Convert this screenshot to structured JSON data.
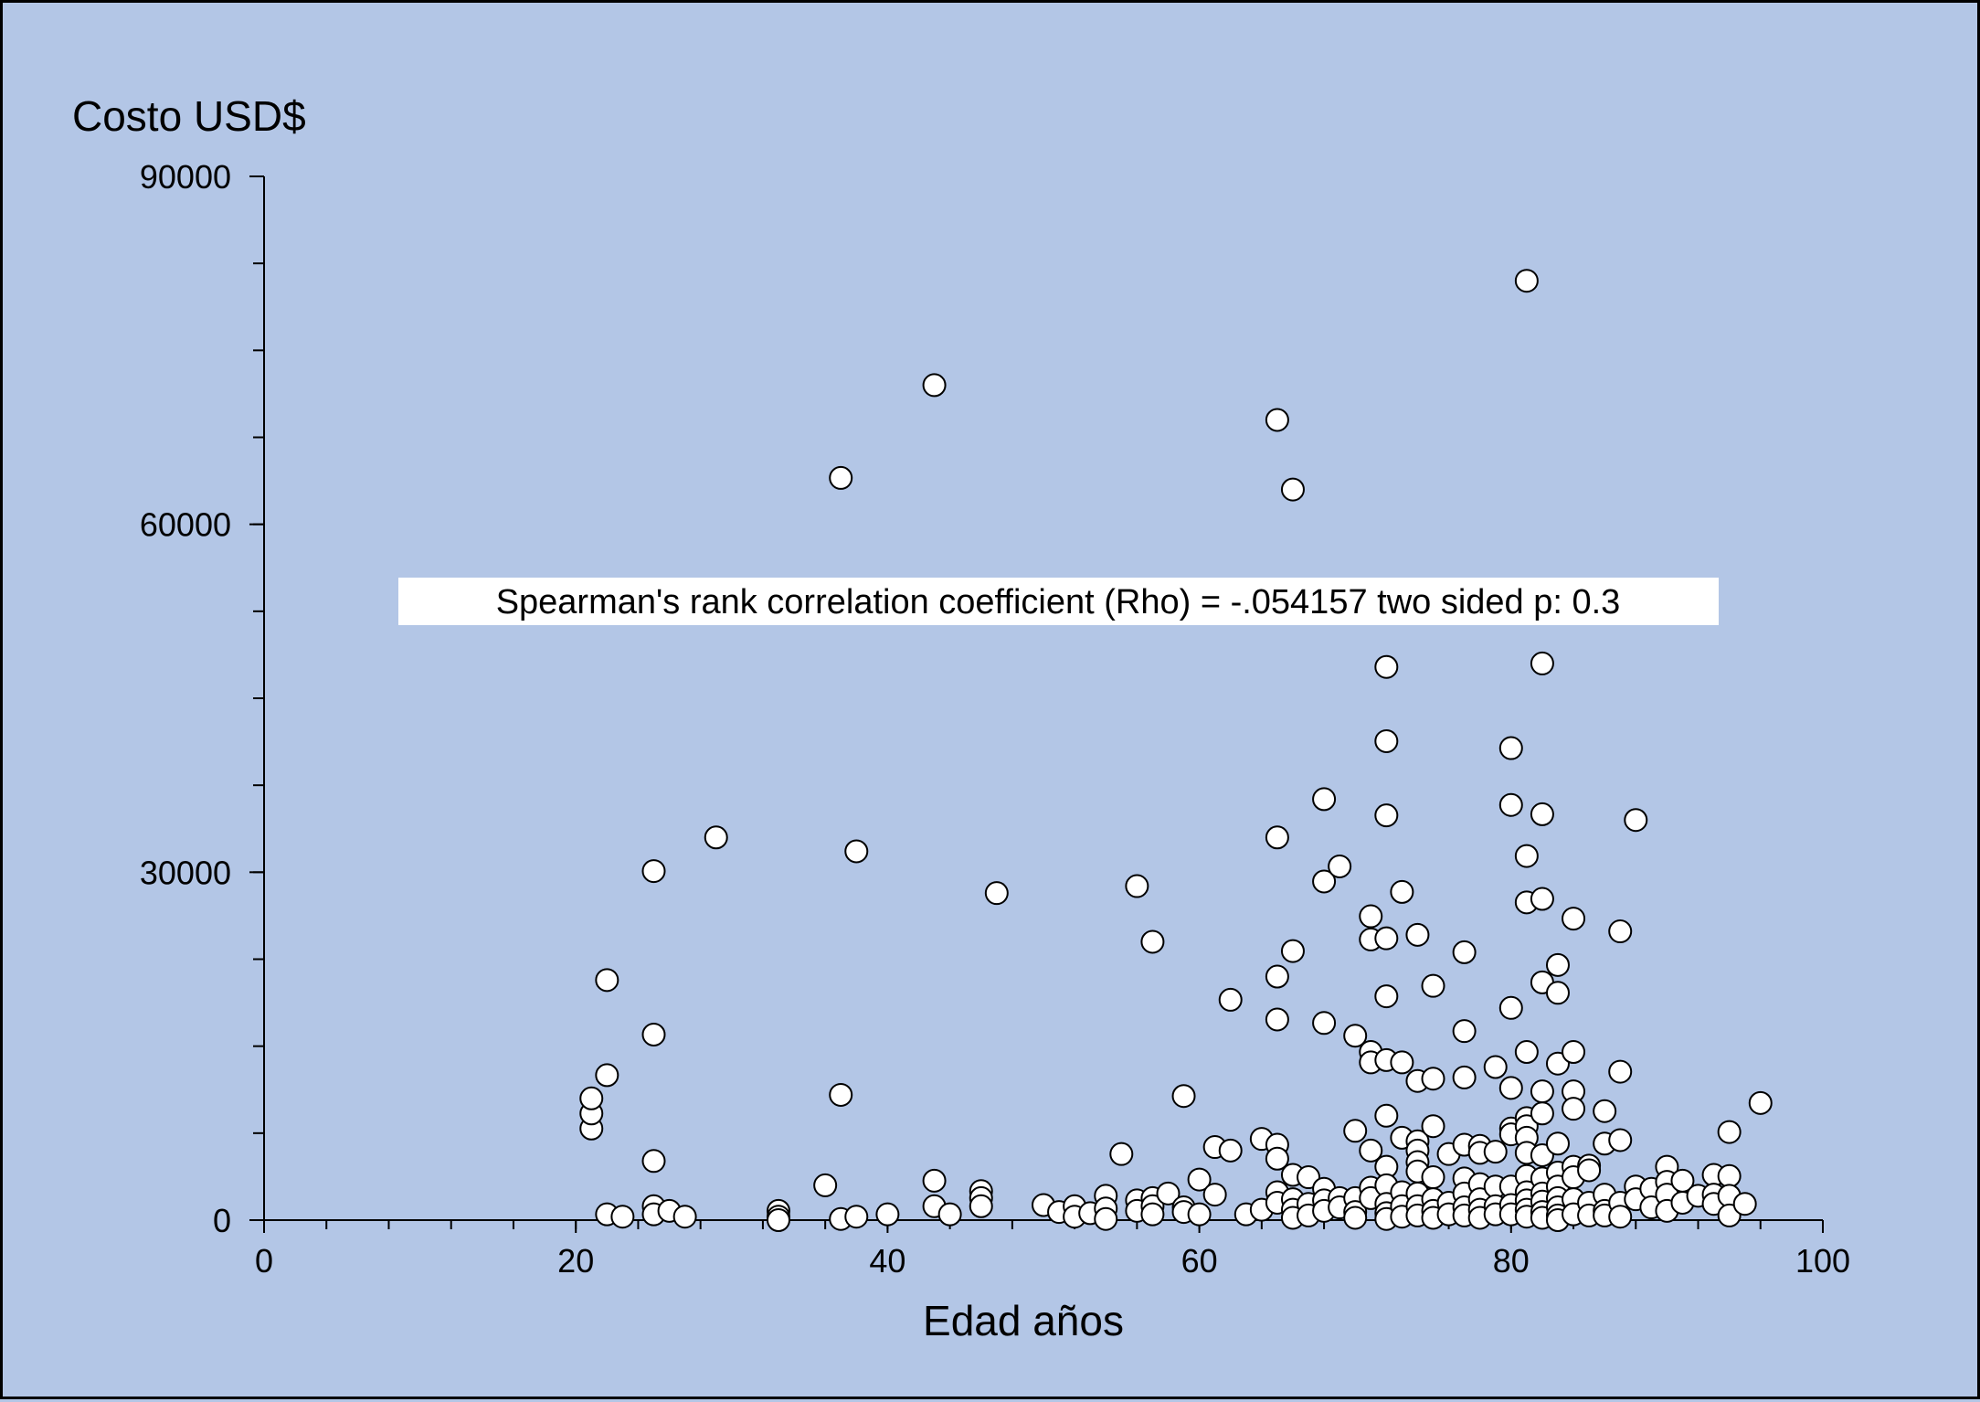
{
  "colors": {
    "background": "#b3c6e6",
    "axis": "#000000",
    "point_fill": "#ffffff",
    "point_stroke": "#000000",
    "annotation_bg": "#ffffff"
  },
  "chart_data": {
    "type": "scatter",
    "title": "",
    "xlabel": "Edad años",
    "ylabel": "Costo USD$",
    "xlim": [
      0,
      100
    ],
    "ylim": [
      0,
      90000
    ],
    "x_ticks": [
      0,
      20,
      40,
      60,
      80,
      100
    ],
    "y_ticks": [
      0,
      30000,
      60000,
      90000
    ],
    "x_tick_labels": [
      "0",
      "20",
      "40",
      "60",
      "80",
      "100"
    ],
    "y_tick_labels": [
      "0",
      "30000",
      "60000",
      "90000"
    ],
    "annotation": "Spearman's rank correlation coefficient (Rho) =  -.054157 two sided p: 0.3",
    "grid": false,
    "legend": "none",
    "series": [
      {
        "points": [
          [
            21,
            7900
          ],
          [
            21,
            9200
          ],
          [
            21,
            10500
          ],
          [
            22,
            12500
          ],
          [
            22,
            20700
          ],
          [
            22,
            500
          ],
          [
            23,
            300
          ],
          [
            25,
            30100
          ],
          [
            25,
            16000
          ],
          [
            25,
            5100
          ],
          [
            25,
            1200
          ],
          [
            25,
            500
          ],
          [
            26,
            800
          ],
          [
            27,
            300
          ],
          [
            29,
            33000
          ],
          [
            33,
            800
          ],
          [
            33,
            300
          ],
          [
            33,
            0
          ],
          [
            36,
            3000
          ],
          [
            37,
            64000
          ],
          [
            37,
            10800
          ],
          [
            37,
            100
          ],
          [
            38,
            31800
          ],
          [
            38,
            300
          ],
          [
            40,
            500
          ],
          [
            43,
            72000
          ],
          [
            43,
            3400
          ],
          [
            43,
            1200
          ],
          [
            44,
            500
          ],
          [
            46,
            2500
          ],
          [
            46,
            1900
          ],
          [
            46,
            1200
          ],
          [
            47,
            28200
          ],
          [
            50,
            1300
          ],
          [
            51,
            700
          ],
          [
            52,
            1200
          ],
          [
            52,
            300
          ],
          [
            53,
            600
          ],
          [
            54,
            2100
          ],
          [
            54,
            1000
          ],
          [
            54,
            100
          ],
          [
            55,
            5700
          ],
          [
            56,
            28800
          ],
          [
            56,
            1700
          ],
          [
            56,
            800
          ],
          [
            57,
            24000
          ],
          [
            57,
            1900
          ],
          [
            57,
            1200
          ],
          [
            57,
            500
          ],
          [
            58,
            2300
          ],
          [
            59,
            10700
          ],
          [
            59,
            1100
          ],
          [
            59,
            700
          ],
          [
            60,
            3500
          ],
          [
            60,
            500
          ],
          [
            61,
            6300
          ],
          [
            61,
            2200
          ],
          [
            62,
            19000
          ],
          [
            62,
            6000
          ],
          [
            63,
            500
          ],
          [
            64,
            7000
          ],
          [
            64,
            900
          ],
          [
            65,
            69000
          ],
          [
            65,
            33000
          ],
          [
            65,
            21000
          ],
          [
            65,
            17300
          ],
          [
            65,
            6500
          ],
          [
            65,
            5300
          ],
          [
            65,
            2400
          ],
          [
            65,
            1500
          ],
          [
            66,
            63000
          ],
          [
            66,
            23200
          ],
          [
            66,
            3900
          ],
          [
            66,
            1800
          ],
          [
            66,
            900
          ],
          [
            66,
            200
          ],
          [
            67,
            3700
          ],
          [
            67,
            1400
          ],
          [
            67,
            400
          ],
          [
            68,
            36300
          ],
          [
            68,
            29200
          ],
          [
            68,
            17000
          ],
          [
            68,
            2700
          ],
          [
            68,
            1700
          ],
          [
            68,
            800
          ],
          [
            69,
            30500
          ],
          [
            69,
            1900
          ],
          [
            69,
            1100
          ],
          [
            70,
            15900
          ],
          [
            70,
            7700
          ],
          [
            70,
            1900
          ],
          [
            70,
            700
          ],
          [
            70,
            200
          ],
          [
            71,
            26200
          ],
          [
            71,
            24200
          ],
          [
            71,
            14500
          ],
          [
            71,
            13600
          ],
          [
            71,
            6000
          ],
          [
            71,
            2800
          ],
          [
            71,
            1900
          ],
          [
            72,
            47700
          ],
          [
            72,
            41300
          ],
          [
            72,
            34900
          ],
          [
            72,
            24300
          ],
          [
            72,
            19300
          ],
          [
            72,
            13800
          ],
          [
            72,
            9000
          ],
          [
            72,
            4600
          ],
          [
            72,
            3000
          ],
          [
            72,
            1400
          ],
          [
            72,
            600
          ],
          [
            72,
            100
          ],
          [
            73,
            28300
          ],
          [
            73,
            13600
          ],
          [
            73,
            7100
          ],
          [
            73,
            2400
          ],
          [
            73,
            1200
          ],
          [
            73,
            300
          ],
          [
            74,
            24600
          ],
          [
            74,
            12000
          ],
          [
            74,
            6800
          ],
          [
            74,
            6000
          ],
          [
            74,
            5000
          ],
          [
            74,
            4200
          ],
          [
            74,
            2300
          ],
          [
            74,
            1200
          ],
          [
            74,
            400
          ],
          [
            75,
            20200
          ],
          [
            75,
            12200
          ],
          [
            75,
            8100
          ],
          [
            75,
            3700
          ],
          [
            75,
            1800
          ],
          [
            75,
            800
          ],
          [
            75,
            200
          ],
          [
            76,
            5700
          ],
          [
            76,
            1500
          ],
          [
            76,
            500
          ],
          [
            77,
            23100
          ],
          [
            77,
            16300
          ],
          [
            77,
            12300
          ],
          [
            77,
            6500
          ],
          [
            77,
            3600
          ],
          [
            77,
            2300
          ],
          [
            77,
            1100
          ],
          [
            77,
            400
          ],
          [
            78,
            6400
          ],
          [
            78,
            5800
          ],
          [
            78,
            3100
          ],
          [
            78,
            1800
          ],
          [
            78,
            900
          ],
          [
            78,
            200
          ],
          [
            79,
            13200
          ],
          [
            79,
            5900
          ],
          [
            79,
            2900
          ],
          [
            79,
            1200
          ],
          [
            79,
            500
          ],
          [
            80,
            40700
          ],
          [
            80,
            35800
          ],
          [
            80,
            18300
          ],
          [
            80,
            11400
          ],
          [
            80,
            7900
          ],
          [
            80,
            7400
          ],
          [
            80,
            2900
          ],
          [
            80,
            1300
          ],
          [
            80,
            500
          ],
          [
            81,
            81000
          ],
          [
            81,
            31400
          ],
          [
            81,
            27400
          ],
          [
            81,
            14500
          ],
          [
            81,
            8800
          ],
          [
            81,
            8100
          ],
          [
            81,
            7100
          ],
          [
            81,
            5800
          ],
          [
            81,
            3800
          ],
          [
            81,
            2400
          ],
          [
            81,
            1700
          ],
          [
            81,
            900
          ],
          [
            81,
            300
          ],
          [
            82,
            48000
          ],
          [
            82,
            35000
          ],
          [
            82,
            27700
          ],
          [
            82,
            20500
          ],
          [
            82,
            11100
          ],
          [
            82,
            9200
          ],
          [
            82,
            5600
          ],
          [
            82,
            3600
          ],
          [
            82,
            2300
          ],
          [
            82,
            1600
          ],
          [
            82,
            700
          ],
          [
            82,
            200
          ],
          [
            83,
            22000
          ],
          [
            83,
            19600
          ],
          [
            83,
            13500
          ],
          [
            83,
            6600
          ],
          [
            83,
            4100
          ],
          [
            83,
            2900
          ],
          [
            83,
            1900
          ],
          [
            83,
            1100
          ],
          [
            83,
            400
          ],
          [
            83,
            0
          ],
          [
            84,
            26000
          ],
          [
            84,
            14500
          ],
          [
            84,
            11100
          ],
          [
            84,
            9600
          ],
          [
            84,
            4600
          ],
          [
            84,
            3700
          ],
          [
            84,
            1800
          ],
          [
            84,
            500
          ],
          [
            85,
            4700
          ],
          [
            85,
            4300
          ],
          [
            85,
            1500
          ],
          [
            85,
            400
          ],
          [
            86,
            9400
          ],
          [
            86,
            6600
          ],
          [
            86,
            2200
          ],
          [
            86,
            800
          ],
          [
            86,
            400
          ],
          [
            87,
            24900
          ],
          [
            87,
            12800
          ],
          [
            87,
            6900
          ],
          [
            87,
            1500
          ],
          [
            87,
            300
          ],
          [
            88,
            34500
          ],
          [
            88,
            2900
          ],
          [
            88,
            1800
          ],
          [
            89,
            2700
          ],
          [
            89,
            1100
          ],
          [
            90,
            4600
          ],
          [
            90,
            3300
          ],
          [
            90,
            2200
          ],
          [
            90,
            800
          ],
          [
            91,
            3400
          ],
          [
            91,
            1500
          ],
          [
            92,
            2100
          ],
          [
            93,
            3900
          ],
          [
            93,
            2200
          ],
          [
            93,
            1400
          ],
          [
            94,
            7600
          ],
          [
            94,
            3800
          ],
          [
            94,
            2100
          ],
          [
            94,
            400
          ],
          [
            95,
            1400
          ],
          [
            96,
            10100
          ]
        ]
      }
    ]
  }
}
